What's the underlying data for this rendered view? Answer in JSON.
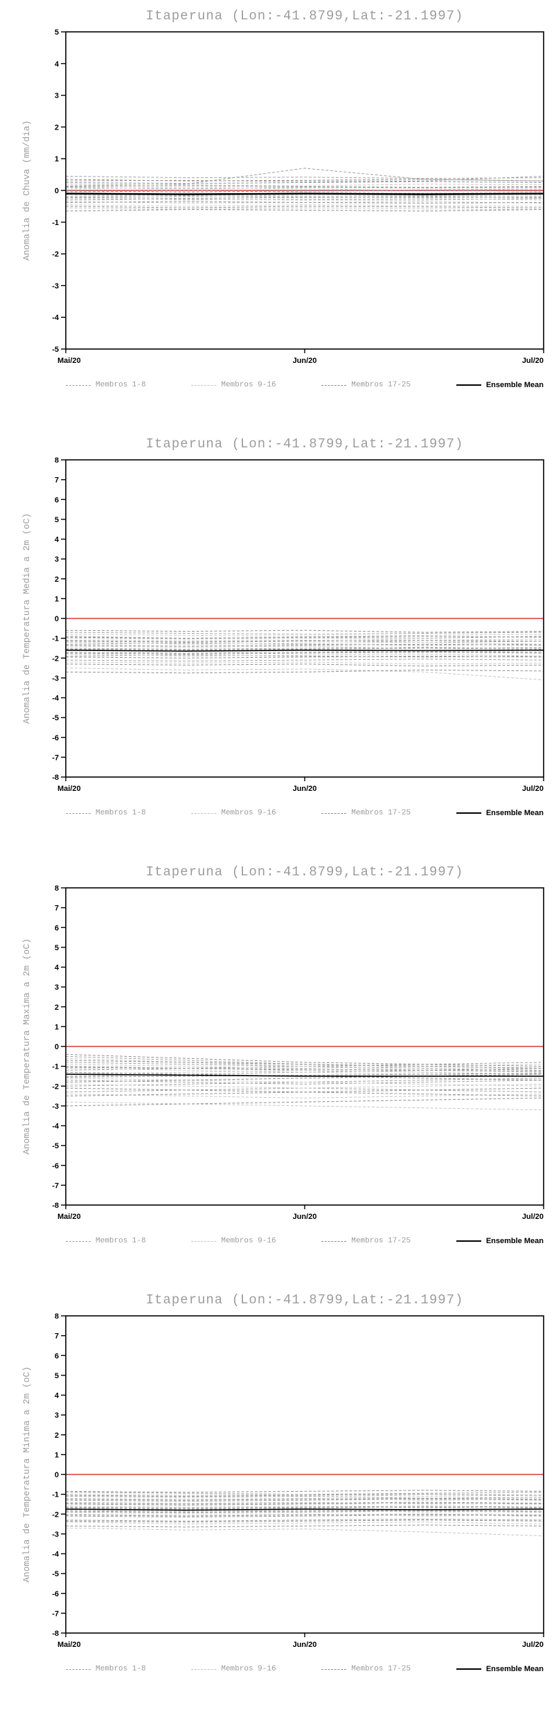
{
  "location_title": "Itaperuna (Lon:-41.8799,Lat:-21.1997)",
  "chart_data": [
    {
      "type": "line",
      "title": "Itaperuna (Lon:-41.8799,Lat:-21.1997)",
      "ylabel": "Anomalia de Chuva (mm/dia)",
      "ylim": [
        -5,
        5
      ],
      "ytick_step": 1,
      "xticklabels": [
        "Mai/20",
        "Jun/20",
        "Jul/20"
      ],
      "zero_line": {
        "value": 0,
        "color": "#e06a6a"
      },
      "legend": [
        {
          "label": "Membros 1-8",
          "style": "dashed",
          "color": "#a0a0a0"
        },
        {
          "label": "Membros 9-16",
          "style": "dashed",
          "color": "#c6c6c6"
        },
        {
          "label": "Membros 17-25",
          "style": "dashed",
          "color": "#8f8f8f"
        },
        {
          "label": "Ensemble Mean",
          "style": "solid",
          "color": "#000000"
        }
      ],
      "groups": [
        {
          "name": "Membros 1-8",
          "color": "#a0a0a0",
          "members": [
            [
              0.45,
              0.4,
              0.42,
              0.38,
              0.4
            ],
            [
              0.3,
              0.32,
              0.28,
              0.3,
              0.45
            ],
            [
              0.15,
              0.2,
              0.7,
              0.35,
              0.3
            ],
            [
              0.1,
              0.05,
              0.1,
              0.08,
              0.1
            ],
            [
              0.0,
              -0.05,
              0.0,
              0.02,
              0.05
            ],
            [
              -0.1,
              -0.12,
              -0.1,
              -0.15,
              -0.1
            ],
            [
              -0.2,
              -0.18,
              -0.2,
              -0.22,
              -0.2
            ],
            [
              -0.3,
              -0.28,
              -0.3,
              -0.3,
              -0.25
            ]
          ]
        },
        {
          "name": "Membros 9-16",
          "color": "#c6c6c6",
          "members": [
            [
              0.2,
              0.18,
              0.15,
              0.2,
              0.18
            ],
            [
              0.05,
              0.1,
              0.05,
              0.0,
              0.05
            ],
            [
              -0.05,
              0.0,
              -0.05,
              -0.08,
              -0.05
            ],
            [
              -0.15,
              -0.2,
              -0.15,
              -0.18,
              -0.15
            ],
            [
              -0.25,
              -0.3,
              -0.28,
              -0.25,
              -0.3
            ],
            [
              -0.35,
              -0.4,
              -0.38,
              -0.35,
              -0.4
            ],
            [
              -0.45,
              -0.5,
              -0.45,
              -0.48,
              -0.5
            ],
            [
              -0.55,
              -0.6,
              -0.55,
              -0.58,
              -0.6
            ]
          ]
        },
        {
          "name": "Membros 17-25",
          "color": "#8f8f8f",
          "members": [
            [
              0.35,
              0.3,
              0.32,
              0.35,
              0.3
            ],
            [
              0.25,
              0.22,
              0.25,
              0.28,
              0.25
            ],
            [
              0.12,
              0.15,
              0.12,
              0.1,
              0.12
            ],
            [
              -0.02,
              -0.05,
              -0.02,
              0.0,
              -0.02
            ],
            [
              -0.12,
              -0.15,
              -0.12,
              -0.1,
              -0.12
            ],
            [
              -0.22,
              -0.25,
              -0.22,
              -0.2,
              -0.22
            ],
            [
              -0.38,
              -0.35,
              -0.38,
              -0.4,
              -0.38
            ],
            [
              -0.5,
              -0.55,
              -0.5,
              -0.52,
              -0.55
            ],
            [
              -0.65,
              -0.6,
              -0.62,
              -0.65,
              -0.6
            ]
          ]
        }
      ],
      "ensemble_mean": [
        -0.1,
        -0.12,
        -0.1,
        -0.12,
        -0.1
      ],
      "mean_width": 2.4
    },
    {
      "type": "line",
      "title": "Itaperuna (Lon:-41.8799,Lat:-21.1997)",
      "ylabel": "Anomalia de Temperatura Media a 2m (oC)",
      "ylim": [
        -8,
        8
      ],
      "ytick_step": 1,
      "xticklabels": [
        "Mai/20",
        "Jun/20",
        "Jul/20"
      ],
      "zero_line": {
        "value": 0,
        "color": "#e06a6a"
      },
      "legend": [
        {
          "label": "Membros 1-8",
          "style": "dashed",
          "color": "#a0a0a0"
        },
        {
          "label": "Membros 9-16",
          "style": "dashed",
          "color": "#c6c6c6"
        },
        {
          "label": "Membros 17-25",
          "style": "dashed",
          "color": "#8f8f8f"
        },
        {
          "label": "Ensemble Mean",
          "style": "solid",
          "color": "#000000"
        }
      ],
      "groups": [
        {
          "name": "Membros 1-8",
          "color": "#a0a0a0",
          "members": [
            [
              -0.7,
              -0.75,
              -0.8,
              -0.75,
              -0.7
            ],
            [
              -0.9,
              -1.0,
              -0.95,
              -1.0,
              -0.9
            ],
            [
              -1.1,
              -1.15,
              -1.1,
              -1.2,
              -1.15
            ],
            [
              -1.3,
              -1.25,
              -1.3,
              -1.35,
              -1.3
            ],
            [
              -1.5,
              -1.55,
              -1.5,
              -1.45,
              -1.5
            ],
            [
              -1.7,
              -1.75,
              -1.7,
              -1.65,
              -1.7
            ],
            [
              -1.9,
              -1.85,
              -1.9,
              -1.95,
              -1.9
            ],
            [
              -2.1,
              -2.15,
              -2.1,
              -2.05,
              -2.1
            ]
          ]
        },
        {
          "name": "Membros 9-16",
          "color": "#c6c6c6",
          "members": [
            [
              -0.8,
              -0.85,
              -0.9,
              -0.85,
              -0.8
            ],
            [
              -1.0,
              -1.05,
              -1.0,
              -1.1,
              -1.05
            ],
            [
              -1.2,
              -1.3,
              -1.25,
              -1.2,
              -1.3
            ],
            [
              -1.4,
              -1.45,
              -1.4,
              -1.5,
              -1.45
            ],
            [
              -1.6,
              -1.65,
              -1.6,
              -1.7,
              -1.6
            ],
            [
              -1.8,
              -1.9,
              -1.85,
              -1.8,
              -1.9
            ],
            [
              -2.2,
              -2.25,
              -2.2,
              -2.3,
              -2.25
            ],
            [
              -2.5,
              -2.6,
              -2.55,
              -2.7,
              -3.1
            ]
          ]
        },
        {
          "name": "Membros 17-25",
          "color": "#8f8f8f",
          "members": [
            [
              -0.6,
              -0.65,
              -0.6,
              -0.7,
              -0.65
            ],
            [
              -0.95,
              -1.0,
              -0.95,
              -0.9,
              -0.95
            ],
            [
              -1.15,
              -1.2,
              -1.15,
              -1.1,
              -1.15
            ],
            [
              -1.35,
              -1.4,
              -1.35,
              -1.3,
              -1.35
            ],
            [
              -1.55,
              -1.6,
              -1.55,
              -1.5,
              -1.55
            ],
            [
              -1.75,
              -1.8,
              -1.75,
              -1.7,
              -1.75
            ],
            [
              -1.95,
              -2.0,
              -1.95,
              -1.9,
              -1.95
            ],
            [
              -2.3,
              -2.35,
              -2.3,
              -2.4,
              -2.35
            ],
            [
              -2.7,
              -2.75,
              -2.7,
              -2.6,
              -2.65
            ]
          ]
        }
      ],
      "ensemble_mean": [
        -1.6,
        -1.65,
        -1.6,
        -1.62,
        -1.6
      ],
      "mean_width": 1.6
    },
    {
      "type": "line",
      "title": "Itaperuna (Lon:-41.8799,Lat:-21.1997)",
      "ylabel": "Anomalia de Temperatura Maxima a 2m (oC)",
      "ylim": [
        -8,
        8
      ],
      "ytick_step": 1,
      "xticklabels": [
        "Mai/20",
        "Jun/20",
        "Jul/20"
      ],
      "zero_line": {
        "value": 0,
        "color": "#e06a6a"
      },
      "legend": [
        {
          "label": "Membros 1-8",
          "style": "dashed",
          "color": "#a0a0a0"
        },
        {
          "label": "Membros 9-16",
          "style": "dashed",
          "color": "#c6c6c6"
        },
        {
          "label": "Membros 17-25",
          "style": "dashed",
          "color": "#8f8f8f"
        },
        {
          "label": "Ensemble Mean",
          "style": "solid",
          "color": "#000000"
        }
      ],
      "groups": [
        {
          "name": "Membros 1-8",
          "color": "#a0a0a0",
          "members": [
            [
              -0.5,
              -0.7,
              -0.9,
              -1.0,
              -1.1
            ],
            [
              -0.8,
              -0.9,
              -1.0,
              -0.9,
              -0.8
            ],
            [
              -1.0,
              -1.1,
              -1.2,
              -1.3,
              -1.4
            ],
            [
              -1.2,
              -1.1,
              -1.0,
              -1.1,
              -1.2
            ],
            [
              -1.5,
              -1.4,
              -1.3,
              -1.2,
              -1.1
            ],
            [
              -1.7,
              -1.8,
              -1.9,
              -1.8,
              -1.7
            ],
            [
              -2.0,
              -1.9,
              -1.8,
              -1.7,
              -1.6
            ],
            [
              -2.3,
              -2.2,
              -2.1,
              -2.2,
              -2.3
            ]
          ]
        },
        {
          "name": "Membros 9-16",
          "color": "#c6c6c6",
          "members": [
            [
              -0.6,
              -0.8,
              -1.0,
              -1.2,
              -1.3
            ],
            [
              -0.9,
              -1.0,
              -1.1,
              -1.0,
              -0.9
            ],
            [
              -1.1,
              -1.2,
              -1.3,
              -1.4,
              -1.5
            ],
            [
              -1.4,
              -1.3,
              -1.2,
              -1.3,
              -1.4
            ],
            [
              -1.6,
              -1.7,
              -1.8,
              -1.9,
              -2.0
            ],
            [
              -1.9,
              -2.0,
              -2.1,
              -2.0,
              -1.9
            ],
            [
              -2.4,
              -2.5,
              -2.6,
              -2.5,
              -2.4
            ],
            [
              -2.8,
              -2.9,
              -3.0,
              -3.1,
              -3.2
            ]
          ]
        },
        {
          "name": "Membros 17-25",
          "color": "#8f8f8f",
          "members": [
            [
              -0.4,
              -0.6,
              -0.8,
              -0.9,
              -1.0
            ],
            [
              -0.7,
              -0.8,
              -0.9,
              -1.0,
              -1.1
            ],
            [
              -1.05,
              -1.1,
              -1.15,
              -1.2,
              -1.25
            ],
            [
              -1.3,
              -1.4,
              -1.5,
              -1.6,
              -1.7
            ],
            [
              -1.55,
              -1.5,
              -1.45,
              -1.4,
              -1.35
            ],
            [
              -1.8,
              -1.7,
              -1.6,
              -1.5,
              -1.4
            ],
            [
              -2.1,
              -2.2,
              -2.3,
              -2.4,
              -2.5
            ],
            [
              -2.5,
              -2.4,
              -2.3,
              -2.2,
              -2.1
            ],
            [
              -3.0,
              -2.9,
              -2.8,
              -2.7,
              -2.6
            ]
          ]
        }
      ],
      "ensemble_mean": [
        -1.4,
        -1.45,
        -1.5,
        -1.5,
        -1.5
      ],
      "mean_width": 1.6
    },
    {
      "type": "line",
      "title": "Itaperuna (Lon:-41.8799,Lat:-21.1997)",
      "ylabel": "Anomalia de Temperatura Minima a 2m (oC)",
      "ylim": [
        -8,
        8
      ],
      "ytick_step": 1,
      "xticklabels": [
        "Mai/20",
        "Jun/20",
        "Jul/20"
      ],
      "zero_line": {
        "value": 0,
        "color": "#e06a6a"
      },
      "legend": [
        {
          "label": "Membros 1-8",
          "style": "dashed",
          "color": "#a0a0a0"
        },
        {
          "label": "Membros 9-16",
          "style": "dashed",
          "color": "#c6c6c6"
        },
        {
          "label": "Membros 17-25",
          "style": "dashed",
          "color": "#8f8f8f"
        },
        {
          "label": "Ensemble Mean",
          "style": "solid",
          "color": "#000000"
        }
      ],
      "groups": [
        {
          "name": "Membros 1-8",
          "color": "#a0a0a0",
          "members": [
            [
              -0.9,
              -0.95,
              -1.0,
              -0.95,
              -0.9
            ],
            [
              -1.1,
              -1.15,
              -1.1,
              -1.2,
              -1.15
            ],
            [
              -1.3,
              -1.35,
              -1.3,
              -1.25,
              -1.3
            ],
            [
              -1.5,
              -1.55,
              -1.5,
              -1.45,
              -1.5
            ],
            [
              -1.7,
              -1.75,
              -1.7,
              -1.65,
              -1.7
            ],
            [
              -1.9,
              -1.95,
              -1.9,
              -1.85,
              -1.9
            ],
            [
              -2.1,
              -2.15,
              -2.1,
              -2.05,
              -2.1
            ],
            [
              -2.3,
              -2.35,
              -2.3,
              -2.25,
              -2.3
            ]
          ]
        },
        {
          "name": "Membros 9-16",
          "color": "#c6c6c6",
          "members": [
            [
              -1.0,
              -1.05,
              -1.0,
              -1.1,
              -1.05
            ],
            [
              -1.2,
              -1.25,
              -1.2,
              -1.3,
              -1.25
            ],
            [
              -1.4,
              -1.45,
              -1.4,
              -1.5,
              -1.45
            ],
            [
              -1.6,
              -1.65,
              -1.6,
              -1.7,
              -1.65
            ],
            [
              -1.8,
              -1.85,
              -1.8,
              -1.9,
              -1.85
            ],
            [
              -2.0,
              -2.05,
              -2.0,
              -2.1,
              -2.05
            ],
            [
              -2.4,
              -2.5,
              -2.45,
              -2.4,
              -2.5
            ],
            [
              -2.7,
              -2.8,
              -2.75,
              -2.9,
              -3.1
            ]
          ]
        },
        {
          "name": "Membros 17-25",
          "color": "#8f8f8f",
          "members": [
            [
              -0.85,
              -0.9,
              -0.85,
              -0.8,
              -0.85
            ],
            [
              -1.05,
              -1.1,
              -1.05,
              -1.0,
              -1.05
            ],
            [
              -1.25,
              -1.3,
              -1.25,
              -1.2,
              -1.25
            ],
            [
              -1.45,
              -1.5,
              -1.45,
              -1.4,
              -1.45
            ],
            [
              -1.65,
              -1.7,
              -1.65,
              -1.6,
              -1.65
            ],
            [
              -1.85,
              -1.9,
              -1.85,
              -1.8,
              -1.85
            ],
            [
              -2.05,
              -2.1,
              -2.05,
              -2.0,
              -2.05
            ],
            [
              -2.35,
              -2.4,
              -2.35,
              -2.3,
              -2.35
            ],
            [
              -2.6,
              -2.65,
              -2.6,
              -2.55,
              -2.6
            ]
          ]
        }
      ],
      "ensemble_mean": [
        -1.75,
        -1.8,
        -1.75,
        -1.78,
        -1.75
      ],
      "mean_width": 1.6
    }
  ]
}
